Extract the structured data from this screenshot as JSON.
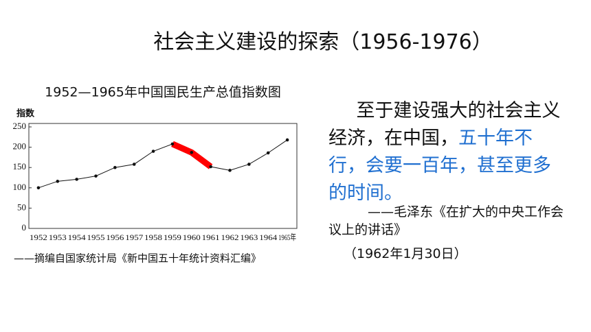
{
  "slide": {
    "title": "社会主义建设的探索（1956-1976）",
    "quote_black": "至于建设强大的社会主义经济，在中国，",
    "quote_blue": "五十年不行，会要一百年，甚至更多的时间。",
    "attribution": "——毛泽东《在扩大的中央工作会议上的讲话》",
    "date": "（1962年1月30日）"
  },
  "chart_data": {
    "type": "line",
    "title": "1952—1965年中国国民生产总值指数图",
    "y_label": "指数",
    "source": "——摘编自国家统计局《新中国五十年统计资料汇编》",
    "categories": [
      "1952",
      "1953",
      "1954",
      "1955",
      "1956",
      "1957",
      "1958",
      "1959",
      "1960",
      "1961",
      "1962",
      "1963",
      "1964",
      "1965年"
    ],
    "values": [
      100,
      116,
      121,
      129,
      150,
      158,
      190,
      208,
      187,
      152,
      143,
      158,
      186,
      218
    ],
    "color": "#111111",
    "highlight_categories": [
      "1959",
      "1961"
    ],
    "highlight_color": "#ff0000",
    "ylim": [
      0,
      250
    ],
    "yticks": [
      0,
      50,
      100,
      150,
      200,
      250
    ],
    "grid": false
  }
}
